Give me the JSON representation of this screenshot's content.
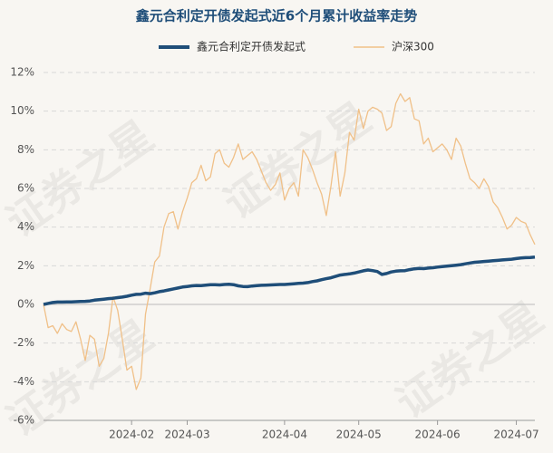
{
  "chart_data": {
    "type": "line",
    "title": "鑫元合利定开债发起式近6个月累计收益率走势",
    "watermark": "证券之星",
    "categories": [
      null,
      null,
      null,
      null,
      null,
      null,
      null,
      null,
      null,
      null,
      null,
      null,
      null,
      null,
      null,
      null,
      null,
      null,
      null,
      "2024-02",
      null,
      null,
      null,
      null,
      null,
      null,
      null,
      null,
      null,
      null,
      null,
      "2024-03",
      null,
      null,
      null,
      null,
      null,
      null,
      null,
      null,
      null,
      null,
      null,
      null,
      null,
      null,
      null,
      null,
      null,
      null,
      null,
      null,
      "2024-04",
      null,
      null,
      null,
      null,
      null,
      null,
      null,
      null,
      null,
      null,
      null,
      null,
      null,
      null,
      null,
      "2024-05",
      null,
      null,
      null,
      null,
      null,
      null,
      null,
      null,
      null,
      null,
      null,
      null,
      null,
      null,
      null,
      null,
      "2024-06",
      null,
      null,
      null,
      null,
      null,
      null,
      null,
      null,
      null,
      null,
      null,
      null,
      null,
      null,
      null,
      null,
      "2024-07",
      null,
      null,
      null,
      null
    ],
    "series": [
      {
        "name": "鑫元合利定开债发起式",
        "color": "#1f4e79",
        "values": [
          0.0,
          0.05,
          0.1,
          0.12,
          0.12,
          0.13,
          0.13,
          0.14,
          0.15,
          0.16,
          0.18,
          0.22,
          0.25,
          0.27,
          0.3,
          0.32,
          0.35,
          0.38,
          0.42,
          0.48,
          0.52,
          0.53,
          0.58,
          0.56,
          0.6,
          0.66,
          0.7,
          0.75,
          0.8,
          0.85,
          0.9,
          0.93,
          0.96,
          0.98,
          0.97,
          1.0,
          1.02,
          1.02,
          1.01,
          1.03,
          1.04,
          1.02,
          0.96,
          0.93,
          0.92,
          0.95,
          0.97,
          0.99,
          1.0,
          1.01,
          1.02,
          1.03,
          1.03,
          1.05,
          1.07,
          1.09,
          1.1,
          1.13,
          1.18,
          1.22,
          1.28,
          1.33,
          1.38,
          1.45,
          1.52,
          1.55,
          1.58,
          1.62,
          1.68,
          1.74,
          1.78,
          1.75,
          1.7,
          1.55,
          1.6,
          1.68,
          1.72,
          1.74,
          1.75,
          1.8,
          1.84,
          1.86,
          1.85,
          1.88,
          1.9,
          1.93,
          1.96,
          1.98,
          2.0,
          2.03,
          2.06,
          2.1,
          2.14,
          2.18,
          2.2,
          2.22,
          2.24,
          2.26,
          2.28,
          2.3,
          2.32,
          2.34,
          2.37,
          2.4,
          2.42,
          2.43,
          2.45
        ]
      },
      {
        "name": "沪深300",
        "color": "#f0c088",
        "values": [
          0,
          -1.2,
          -1.1,
          -1.5,
          -1.0,
          -1.3,
          -1.4,
          -0.9,
          -1.8,
          -2.9,
          -1.6,
          -1.8,
          -3.2,
          -2.8,
          -1.5,
          0.4,
          -0.3,
          -1.8,
          -3.4,
          -3.2,
          -4.4,
          -3.8,
          -0.5,
          0.8,
          2.2,
          2.5,
          4.0,
          4.7,
          4.8,
          3.9,
          4.8,
          5.5,
          6.3,
          6.5,
          7.2,
          6.4,
          6.6,
          7.8,
          8.0,
          7.3,
          7.1,
          7.6,
          8.3,
          7.5,
          7.7,
          7.9,
          7.5,
          6.9,
          6.3,
          5.9,
          6.2,
          6.8,
          5.4,
          6.0,
          6.3,
          5.6,
          8.0,
          7.6,
          7.0,
          6.3,
          5.7,
          4.6,
          6.1,
          7.9,
          5.6,
          6.8,
          8.9,
          8.5,
          10.1,
          9.1,
          10.0,
          10.2,
          10.1,
          9.9,
          9.0,
          9.2,
          10.4,
          10.9,
          10.5,
          10.7,
          9.6,
          9.5,
          8.3,
          8.6,
          7.9,
          8.1,
          8.3,
          8.0,
          7.5,
          8.6,
          8.2,
          7.3,
          6.5,
          6.3,
          6.0,
          6.5,
          6.1,
          5.3,
          5.0,
          4.5,
          3.9,
          4.1,
          4.5,
          4.3,
          4.2,
          3.6,
          3.1
        ]
      }
    ],
    "ylim": [
      -6,
      12
    ],
    "yticks": [
      {
        "value": -6,
        "label": "-6%"
      },
      {
        "value": -4,
        "label": "-4%"
      },
      {
        "value": -2,
        "label": "-2%"
      },
      {
        "value": 0,
        "label": "0%"
      },
      {
        "value": 2,
        "label": "2%"
      },
      {
        "value": 4,
        "label": "4%"
      },
      {
        "value": 6,
        "label": "6%"
      },
      {
        "value": 8,
        "label": "8%"
      },
      {
        "value": 10,
        "label": "10%"
      },
      {
        "value": 12,
        "label": "12%"
      }
    ],
    "grid": true,
    "legend": "top"
  }
}
